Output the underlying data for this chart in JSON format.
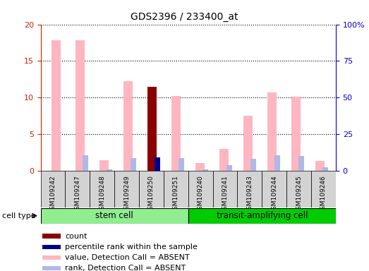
{
  "title": "GDS2396 / 233400_at",
  "samples": [
    "GSM109242",
    "GSM109247",
    "GSM109248",
    "GSM109249",
    "GSM109250",
    "GSM109251",
    "GSM109240",
    "GSM109241",
    "GSM109243",
    "GSM109244",
    "GSM109245",
    "GSM109246"
  ],
  "value_absent": [
    17.8,
    17.8,
    1.4,
    12.2,
    null,
    10.2,
    1.1,
    3.0,
    7.5,
    10.7,
    10.1,
    1.3
  ],
  "rank_absent": [
    null,
    10.8,
    0.9,
    8.6,
    null,
    8.8,
    0.8,
    4.0,
    8.1,
    10.8,
    10.0,
    2.5
  ],
  "count_value": [
    null,
    null,
    null,
    null,
    11.5,
    null,
    null,
    null,
    null,
    null,
    null,
    null
  ],
  "percentile_rank": [
    null,
    null,
    null,
    null,
    9.1,
    null,
    null,
    null,
    null,
    null,
    null,
    null
  ],
  "ylim_left": [
    0,
    20
  ],
  "ylim_right": [
    0,
    100
  ],
  "yticks_left": [
    0,
    5,
    10,
    15,
    20
  ],
  "yticks_right": [
    0,
    25,
    50,
    75,
    100
  ],
  "yticklabels_right": [
    "0",
    "25",
    "50",
    "75",
    "100%"
  ],
  "left_axis_color": "#cc2200",
  "right_axis_color": "#0000cc",
  "bg_color": "#d3d3d3",
  "stem_cell_color": "#90ee90",
  "transit_cell_color": "#00cc00",
  "legend_items": [
    {
      "label": "count",
      "color": "#8b0000"
    },
    {
      "label": "percentile rank within the sample",
      "color": "#00008b"
    },
    {
      "label": "value, Detection Call = ABSENT",
      "color": "#ffb6c1"
    },
    {
      "label": "rank, Detection Call = ABSENT",
      "color": "#b0b8e8"
    }
  ]
}
